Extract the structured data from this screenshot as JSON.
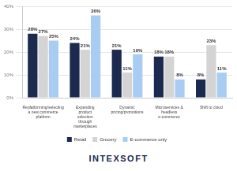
{
  "chart_data": {
    "type": "bar",
    "categories": [
      "Replatforming/selecting a new commerce platform",
      "Expanding product selection through marketplaces",
      "Dynamic pricing/promotions",
      "Microservices & headless e-commerce",
      "Shift to cloud"
    ],
    "series": [
      {
        "name": "Retail",
        "color": "#1b2a4e",
        "values": [
          28,
          24,
          21,
          18,
          8
        ],
        "value_labels": [
          "28%",
          "24%",
          "21%",
          "18%",
          "8%"
        ]
      },
      {
        "name": "Grocery",
        "color": "#d4d4d4",
        "values": [
          27,
          21,
          11,
          18,
          23
        ],
        "value_labels": [
          "27%",
          "21%",
          "11%",
          "18%",
          "23%"
        ]
      },
      {
        "name": "E-commerce only",
        "color": "#a9cdf2",
        "values": [
          25,
          36,
          19,
          8,
          11
        ],
        "value_labels": [
          "25%",
          "36%",
          "19%",
          "8%",
          "11%"
        ]
      }
    ],
    "ylim": [
      0,
      40
    ],
    "yticks": [
      {
        "value": 0,
        "label": "0%"
      },
      {
        "value": 10,
        "label": "10%"
      },
      {
        "value": 20,
        "label": "20%"
      },
      {
        "value": 30,
        "label": "30%"
      },
      {
        "value": 40,
        "label": "40%"
      }
    ],
    "grid": true,
    "legend": "bottom",
    "data_labels": true,
    "annotations": [
      "INTEXSOFT"
    ]
  }
}
